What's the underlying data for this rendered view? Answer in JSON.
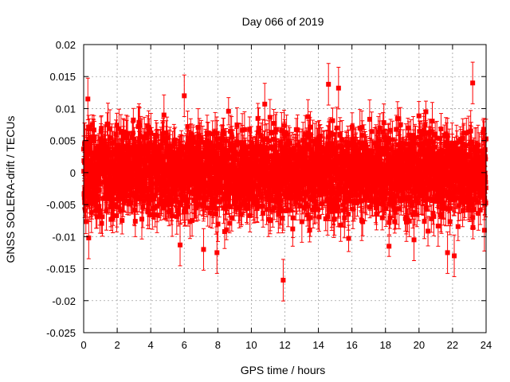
{
  "chart_data": {
    "type": "scatter",
    "title": "Day 066 of 2019",
    "xlabel": "GPS time / hours",
    "ylabel": "GNSS SOLERA-drift / TECUs",
    "xlim": [
      0,
      24
    ],
    "ylim": [
      -0.025,
      0.02
    ],
    "x_ticks": [
      0,
      2,
      4,
      6,
      8,
      10,
      12,
      14,
      16,
      18,
      20,
      22,
      24
    ],
    "x_tick_labels": [
      "0",
      "2",
      "4",
      "6",
      "8",
      "10",
      "12",
      "14",
      "16",
      "18",
      "20",
      "22",
      "24"
    ],
    "y_ticks": [
      -0.025,
      -0.02,
      -0.015,
      -0.01,
      -0.005,
      0,
      0.005,
      0.01,
      0.015,
      0.02
    ],
    "y_tick_labels": [
      "-0.025",
      "-0.02",
      "-0.015",
      "-0.01",
      "-0.005",
      "0",
      "0.005",
      "0.01",
      "0.015",
      "0.02"
    ],
    "grid": true,
    "series": [
      {
        "name": "SOLERA drift",
        "color": "#ff0000",
        "marker": "square",
        "error_bars": true,
        "x_step_hours": 0.0083,
        "typical_sigma": 0.0032,
        "typical_error": 0.0025,
        "highlighted_points": [
          {
            "x": 0.05,
            "y": 0.0045
          },
          {
            "x": 0.25,
            "y": 0.0115
          },
          {
            "x": 0.3,
            "y": -0.0102
          },
          {
            "x": 1.45,
            "y": 0.0076
          },
          {
            "x": 3.3,
            "y": 0.0075
          },
          {
            "x": 5.75,
            "y": -0.0113
          },
          {
            "x": 6.0,
            "y": 0.012
          },
          {
            "x": 7.15,
            "y": -0.012
          },
          {
            "x": 7.95,
            "y": -0.0125
          },
          {
            "x": 10.8,
            "y": 0.0107
          },
          {
            "x": 11.9,
            "y": -0.0168
          },
          {
            "x": 14.6,
            "y": 0.0138
          },
          {
            "x": 15.2,
            "y": 0.0132
          },
          {
            "x": 19.7,
            "y": -0.0105
          },
          {
            "x": 21.7,
            "y": -0.0125
          },
          {
            "x": 22.1,
            "y": -0.013
          },
          {
            "x": 23.2,
            "y": 0.014
          },
          {
            "x": 23.9,
            "y": -0.009
          }
        ]
      }
    ]
  }
}
